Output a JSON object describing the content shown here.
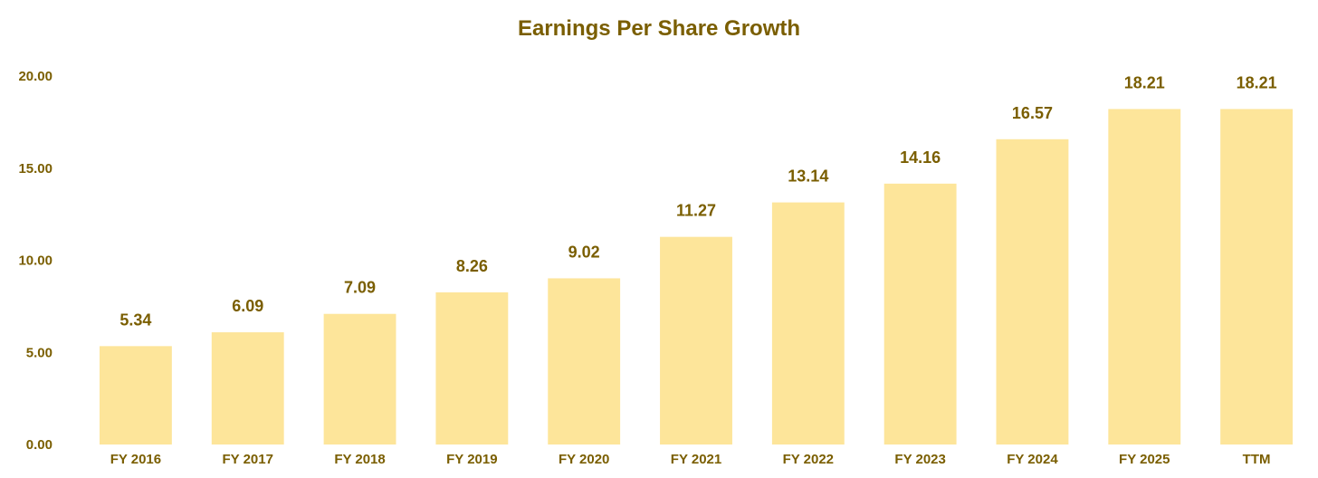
{
  "chart_data": {
    "type": "bar",
    "title": "Earnings Per Share Growth",
    "xlabel": "",
    "ylabel": "",
    "categories": [
      "FY 2016",
      "FY 2017",
      "FY 2018",
      "FY 2019",
      "FY 2020",
      "FY 2021",
      "FY 2022",
      "FY 2023",
      "FY 2024",
      "FY 2025",
      "TTM"
    ],
    "values": [
      5.34,
      6.09,
      7.09,
      8.26,
      9.02,
      11.27,
      13.14,
      14.16,
      16.57,
      18.21,
      18.21
    ],
    "value_labels": [
      "5.34",
      "6.09",
      "7.09",
      "8.26",
      "9.02",
      "11.27",
      "13.14",
      "14.16",
      "16.57",
      "18.21",
      "18.21"
    ],
    "ylim": [
      0,
      20
    ],
    "y_ticks": [
      0,
      5,
      10,
      15,
      20
    ],
    "y_tick_labels": [
      "0.00",
      "5.00",
      "10.00",
      "15.00",
      "20.00"
    ],
    "grid": false,
    "legend": "none",
    "colors": {
      "bar": "#fde59a",
      "text": "#7a5e00"
    }
  }
}
